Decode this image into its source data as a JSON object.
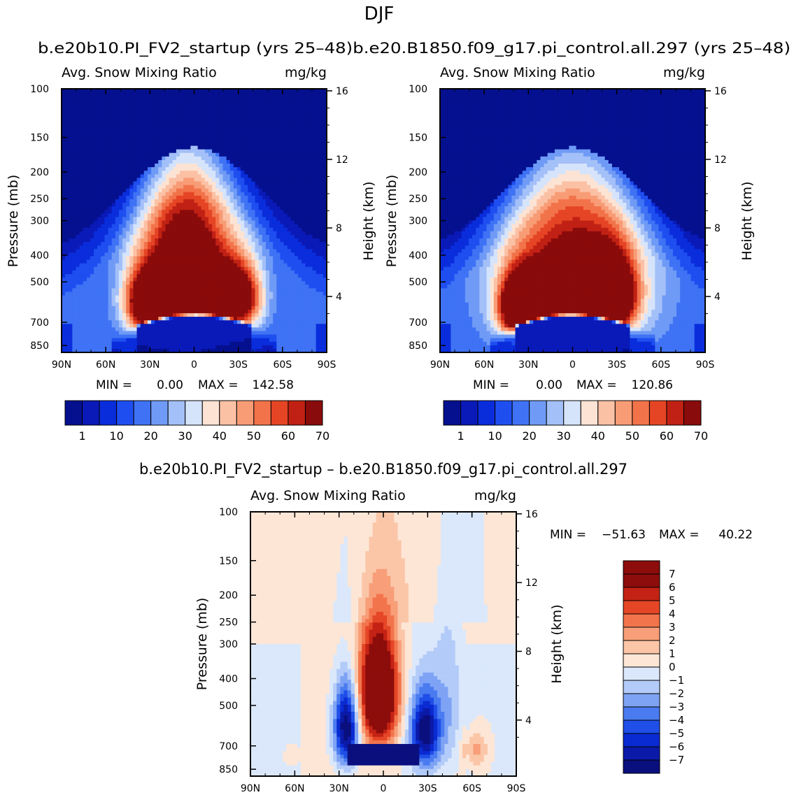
{
  "figure": {
    "season": "DJF",
    "pair_title": "b.e20b10.PI_FV2_startup (yrs 25–48)b.e20.B1850.f09_g17.pi_control.all.297 (yrs 25–48)",
    "diff_title": "b.e20b10.PI_FV2_startup – b.e20.B1850.f09_g17.pi_control.all.297"
  },
  "chart_data": [
    {
      "type": "heatmap",
      "name": "b.e20b10.PI_FV2_startup (yrs 25–48)",
      "title_left": "Avg. Snow Mixing Ratio",
      "title_right": "mg/kg",
      "ylabel": "Pressure (mb)",
      "ylabel_right": "Height (km)",
      "x_ticks": [
        "90N",
        "60N",
        "30N",
        "0",
        "30S",
        "60S",
        "90S"
      ],
      "y_ticks": [
        "100",
        "150",
        "200",
        "250",
        "300",
        "400",
        "500",
        "700",
        "850"
      ],
      "y_ticks_right": [
        "16",
        "12",
        "8",
        "4"
      ],
      "min_label": "MIN =",
      "min_value": "0.00",
      "max_label": "MAX =",
      "max_value": "142.58",
      "levels": [
        1,
        5,
        10,
        15,
        20,
        25,
        30,
        35,
        40,
        45,
        50,
        55,
        60,
        65,
        70
      ],
      "colorbar_labels": [
        "1",
        "10",
        "20",
        "30",
        "40",
        "50",
        "60",
        "70"
      ],
      "fields": {
        "core": {
          "lat": 5,
          "p": 470,
          "peak": 142.58,
          "lat_width": 22,
          "p_width": 210
        },
        "left_lobe": {
          "lat": 33,
          "p": 600,
          "peak": 55
        },
        "right_lobe": {
          "lat": -30,
          "p": 570,
          "peak": 60
        },
        "envelope_top_mb": 200
      }
    },
    {
      "type": "heatmap",
      "name": "b.e20.B1850.f09_g17.pi_control.all.297 (yrs 25–48)",
      "title_left": "Avg. Snow Mixing Ratio",
      "title_right": "mg/kg",
      "ylabel": "Pressure (mb)",
      "ylabel_right": "Height (km)",
      "x_ticks": [
        "90N",
        "60N",
        "30N",
        "0",
        "30S",
        "60S",
        "90S"
      ],
      "y_ticks": [
        "100",
        "150",
        "200",
        "250",
        "300",
        "400",
        "500",
        "700",
        "850"
      ],
      "y_ticks_right": [
        "16",
        "12",
        "8",
        "4"
      ],
      "min_label": "MIN =",
      "min_value": "0.00",
      "max_label": "MAX =",
      "max_value": "120.86",
      "levels": [
        1,
        5,
        10,
        15,
        20,
        25,
        30,
        35,
        40,
        45,
        50,
        55,
        60,
        65,
        70
      ],
      "colorbar_labels": [
        "1",
        "10",
        "20",
        "30",
        "40",
        "50",
        "60",
        "70"
      ],
      "fields": {
        "core": {
          "lat": 0,
          "p": 500,
          "peak": 120.86,
          "lat_width": 32,
          "p_width": 230
        },
        "left_lobe": {
          "lat": 35,
          "p": 620,
          "peak": 75
        },
        "right_lobe": {
          "lat": -25,
          "p": 560,
          "peak": 75
        },
        "envelope_top_mb": 180
      }
    },
    {
      "type": "heatmap",
      "name": "b.e20b10.PI_FV2_startup – b.e20.B1850.f09_g17.pi_control.all.297",
      "title_left": "Avg. Snow Mixing Ratio",
      "title_right": "mg/kg",
      "ylabel": "Pressure (mb)",
      "ylabel_right": "Height (km)",
      "x_ticks": [
        "90N",
        "60N",
        "30N",
        "0",
        "30S",
        "60S",
        "90S"
      ],
      "y_ticks": [
        "100",
        "150",
        "200",
        "250",
        "300",
        "400",
        "500",
        "700",
        "850"
      ],
      "y_ticks_right": [
        "16",
        "12",
        "8",
        "4"
      ],
      "min_label": "MIN =",
      "min_value": "−51.63",
      "max_label": "MAX =",
      "max_value": "40.22",
      "levels": [
        -7,
        -6,
        -5,
        -4,
        -3,
        -2,
        -1,
        0,
        1,
        2,
        3,
        4,
        5,
        6,
        7
      ],
      "colorbar_labels": [
        "7",
        "6",
        "5",
        "4",
        "3",
        "2",
        "1",
        "0",
        "−1",
        "−2",
        "−3",
        "−4",
        "−5",
        "−6",
        "−7"
      ],
      "fields": {
        "positive_core": {
          "lat": 3,
          "p": 450,
          "peak": 40.22
        },
        "negative_lower_tropics": {
          "lat": 0,
          "p": 760,
          "peak": -51.63
        },
        "negative_30N": {
          "lat": 25,
          "p": 600,
          "peak": -20
        },
        "negative_30S": {
          "lat": -28,
          "p": 620,
          "peak": -15
        }
      }
    }
  ],
  "colors": {
    "seq_palette": [
      "#05108f",
      "#0a1ab8",
      "#0a2ddc",
      "#1f4ef0",
      "#3f72f4",
      "#6f9bf6",
      "#a4c0f8",
      "#d6e4fb",
      "#fde3d3",
      "#fbc1a5",
      "#f89c76",
      "#f2734a",
      "#e54524",
      "#c12114",
      "#8a0b0b"
    ],
    "div_palette": [
      "#0a0f7e",
      "#0b1aa8",
      "#0a2bd2",
      "#1f4ee8",
      "#4a7bf0",
      "#7ea3f5",
      "#b3cbf8",
      "#dbe8fb",
      "#fde6d6",
      "#fbc6a8",
      "#f89e78",
      "#f2744c",
      "#e54626",
      "#c42214",
      "#8c0d0b"
    ]
  }
}
